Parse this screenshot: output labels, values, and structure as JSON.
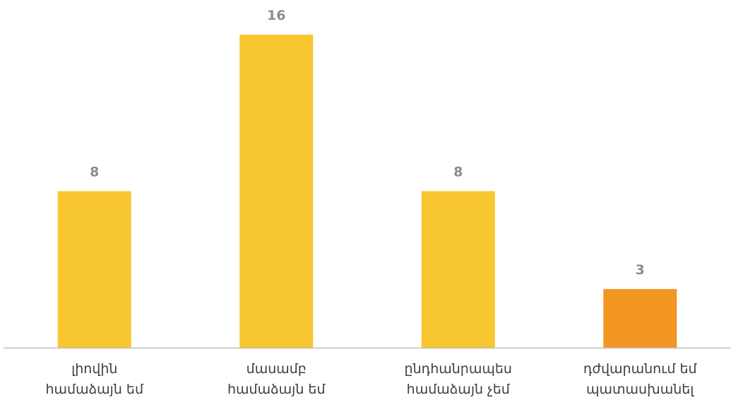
{
  "chart_data": {
    "type": "bar",
    "categories": [
      [
        "լիովին",
        "համաձայն եմ"
      ],
      [
        "մասամբ",
        "համաձայն եմ"
      ],
      [
        "ընդհանրապես",
        "համաձայն չեմ"
      ],
      [
        "դժվարանում եմ",
        "պատասխանել"
      ]
    ],
    "values": [
      8,
      16,
      8,
      3
    ],
    "data_labels": [
      "8",
      "16",
      "8",
      "3"
    ],
    "colors": [
      "#F8C630",
      "#F8C630",
      "#F8C630",
      "#F39623"
    ],
    "axis_color": "#BFBFBF",
    "ylim": [
      0,
      16
    ],
    "grid": false,
    "legend": "none"
  }
}
